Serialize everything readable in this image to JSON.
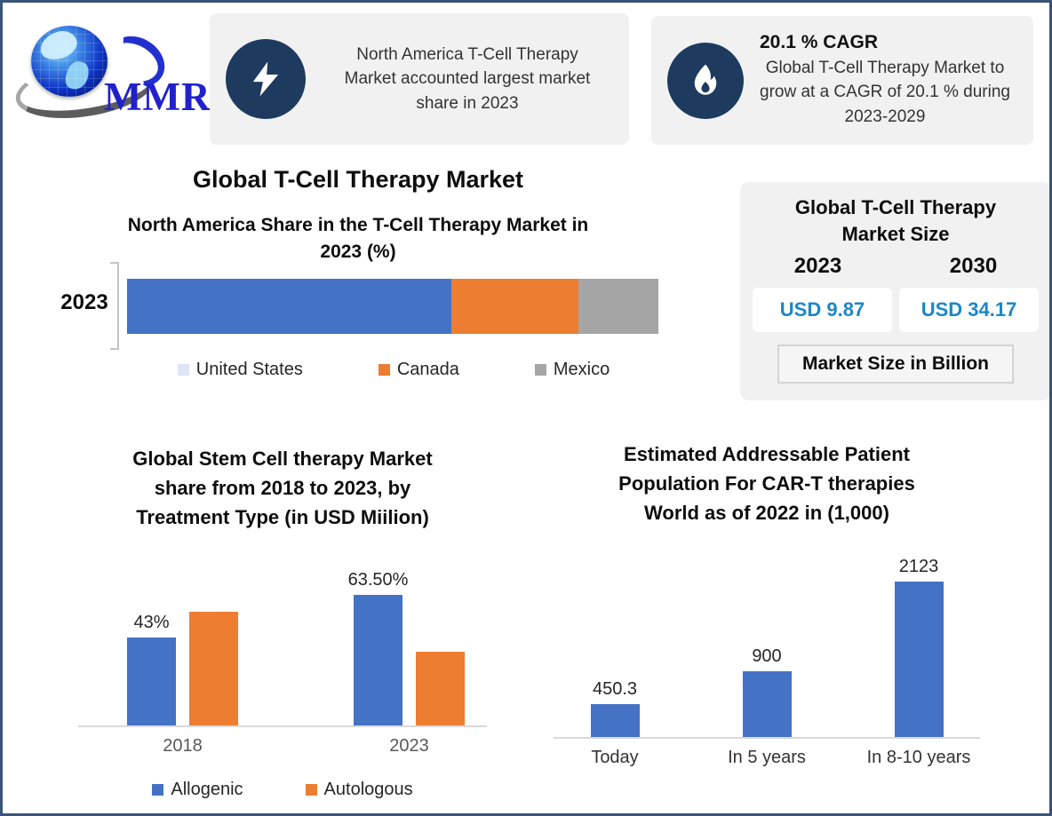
{
  "page": {
    "border_color": "#3a5378",
    "background": "#ffffff"
  },
  "header": {
    "logo_text": "MMR",
    "cards": [
      {
        "icon": "lightning-icon",
        "body": "North America T-Cell Therapy\nMarket accounted largest market\nshare in 2023"
      },
      {
        "icon": "flame-icon",
        "title": "20.1 % CAGR",
        "body": "Global T-Cell Therapy Market to\ngrow at a CAGR of 20.1 % during\n2023-2029"
      }
    ]
  },
  "main_title": "Global T-Cell Therapy Market",
  "market_size_card": {
    "title": "Global T-Cell Therapy\nMarket Size",
    "columns": [
      {
        "year": "2023",
        "value": "USD 9.87"
      },
      {
        "year": "2030",
        "value": "USD 34.17"
      }
    ],
    "footer": "Market Size in Billion",
    "value_color": "#1b87c9"
  },
  "chart_data": [
    {
      "type": "bar",
      "subtype": "stacked-horizontal",
      "title": "North America Share in the T-Cell Therapy Market in\n2023 (%)",
      "categories": [
        "2023"
      ],
      "xlim": [
        0,
        100
      ],
      "legend_position": "bottom",
      "series": [
        {
          "name": "United States",
          "values": [
            61
          ],
          "color": "#4472c4",
          "legend_marker_color": "#dce6f5"
        },
        {
          "name": "Canada",
          "values": [
            24
          ],
          "color": "#ed7d31"
        },
        {
          "name": "Mexico",
          "values": [
            15
          ],
          "color": "#a5a5a5"
        }
      ]
    },
    {
      "type": "bar",
      "subtype": "grouped-vertical",
      "title": "Global Stem Cell therapy Market\nshare from 2018 to 2023, by\nTreatment Type (in USD Miilion)",
      "categories": [
        "2018",
        "2023"
      ],
      "ylim": [
        0,
        70
      ],
      "legend_position": "bottom",
      "series": [
        {
          "name": "Allogenic",
          "color": "#4472c4",
          "values": [
            43,
            63.5
          ],
          "labels": [
            "43%",
            "63.50%"
          ]
        },
        {
          "name": "Autologous",
          "color": "#ed7d31",
          "values": [
            55.5,
            35.7
          ],
          "labels": [
            "",
            ""
          ]
        }
      ]
    },
    {
      "type": "bar",
      "subtype": "vertical",
      "title": "Estimated Addressable Patient\nPopulation For CAR-T therapies\nWorld as of 2022 in (1,000)",
      "categories": [
        "Today",
        "In 5 years",
        "In 8-10 years"
      ],
      "values": [
        450.3,
        900,
        2123
      ],
      "labels": [
        "450.3",
        "900",
        "2123"
      ],
      "color": "#4472c4",
      "ylim": [
        0,
        2300
      ]
    }
  ]
}
